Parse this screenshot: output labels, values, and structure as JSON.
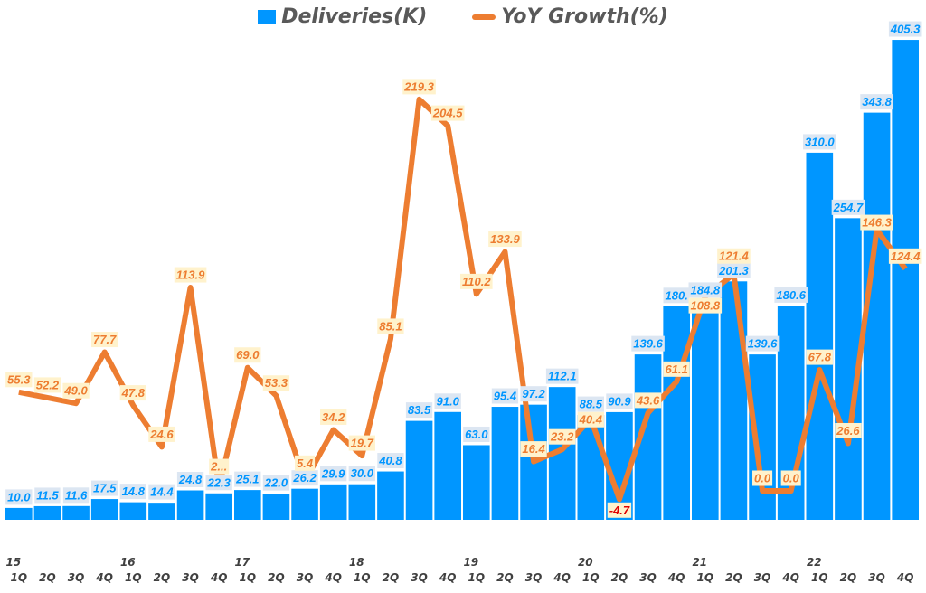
{
  "chart_data": {
    "type": "bar+line",
    "legend_position": "top",
    "grid": false,
    "categories": [
      "1Q",
      "2Q",
      "3Q",
      "4Q",
      "1Q",
      "2Q",
      "3Q",
      "4Q",
      "1Q",
      "2Q",
      "3Q",
      "4Q",
      "1Q",
      "2Q",
      "3Q",
      "4Q",
      "1Q",
      "2Q",
      "3Q",
      "4Q",
      "1Q",
      "2Q",
      "3Q",
      "4Q",
      "1Q",
      "2Q",
      "3Q",
      "4Q",
      "1Q",
      "2Q",
      "3Q",
      "4Q"
    ],
    "year_labels": [
      "15",
      "16",
      "17",
      "18",
      "19",
      "20",
      "21",
      "22"
    ],
    "series": [
      {
        "name": "Deliveries(K)",
        "type": "bar",
        "color": "#0096FF",
        "values": [
          10.0,
          11.5,
          11.6,
          17.5,
          14.8,
          14.4,
          24.8,
          22.3,
          25.1,
          22.0,
          26.2,
          29.9,
          30.0,
          40.8,
          83.5,
          91.0,
          63.0,
          95.4,
          97.2,
          112.1,
          88.5,
          90.9,
          139.6,
          180.3,
          184.8,
          201.3,
          139.6,
          180.6,
          310.0,
          254.7,
          343.8,
          405.3
        ],
        "labels": [
          "10.0",
          "11.5",
          "11.6",
          "17.5",
          "14.8",
          "14.4",
          "24.8",
          "22.3",
          "25.1",
          "22.0",
          "26.2",
          "29.9",
          "30.0",
          "40.8",
          "83.5",
          "91.0",
          "63.0",
          "95.4",
          "97.2",
          "112.1",
          "88.5",
          "90.9",
          "139.6",
          "180.",
          "184.8",
          "201.3",
          "139.6",
          "180.6",
          "310.0",
          "254.7",
          "343.8",
          "405.3"
        ]
      },
      {
        "name": "YoY Growth(%)",
        "type": "line",
        "color": "#ED7D31",
        "values": [
          55.3,
          52.2,
          49.0,
          77.7,
          47.8,
          24.6,
          113.9,
          2.0,
          69.0,
          53.3,
          5.4,
          34.2,
          19.7,
          85.1,
          219.3,
          204.5,
          110.2,
          133.9,
          16.4,
          23.2,
          40.4,
          -4.7,
          43.6,
          61.1,
          108.8,
          121.4,
          0.0,
          0.0,
          67.8,
          26.6,
          146.3,
          124.4
        ],
        "labels": [
          "55.3",
          "52.2",
          "49.0",
          "77.7",
          "47.8",
          "24.6",
          "113.9",
          "2...",
          "69.0",
          "53.3",
          "5.4",
          "34.2",
          "19.7",
          "85.1",
          "219.3",
          "204.5",
          "110.2",
          "133.9",
          "16.4",
          "23.2",
          "40.4",
          "-4.7",
          "43.6",
          "61.1",
          "108.8",
          "121.4",
          "0.0",
          "0.0",
          "67.8",
          "26.6",
          "146.3",
          "124.4"
        ]
      }
    ]
  }
}
